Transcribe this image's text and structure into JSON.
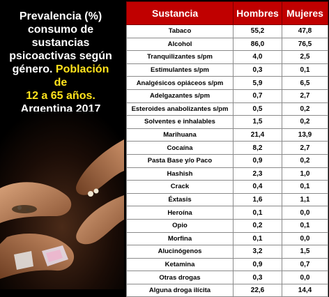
{
  "title": {
    "line1": "Prevalencia (%)",
    "line2": "consumo de",
    "line3": "sustancias",
    "line4": "psicoactivas según",
    "line5_white": "género. ",
    "line5_yellow": "Población de",
    "line6": "12 a 65 años.",
    "line7": "Argentina 2017"
  },
  "table": {
    "headers": [
      "Sustancia",
      "Hombres",
      "Mujeres"
    ],
    "rows": [
      {
        "sustancia": "Tabaco",
        "hombres": "55,2",
        "mujeres": "47,8"
      },
      {
        "sustancia": "Alcohol",
        "hombres": "86,0",
        "mujeres": "76,5"
      },
      {
        "sustancia": "Tranquilizantes s/pm",
        "hombres": "4,0",
        "mujeres": "2,5"
      },
      {
        "sustancia": "Estimulantes s/pm",
        "hombres": "0,3",
        "mujeres": "0,1"
      },
      {
        "sustancia": "Analgésicos opiáceos s/pm",
        "hombres": "5,9",
        "mujeres": "6,5"
      },
      {
        "sustancia": "Adelgazantes s/pm",
        "hombres": "0,7",
        "mujeres": "2,7"
      },
      {
        "sustancia": "Esteroides anabolizantes s/pm",
        "hombres": "0,5",
        "mujeres": "0,2"
      },
      {
        "sustancia": "Solventes e inhalables",
        "hombres": "1,5",
        "mujeres": "0,2"
      },
      {
        "sustancia": "Marihuana",
        "hombres": "21,4",
        "mujeres": "13,9"
      },
      {
        "sustancia": "Cocaína",
        "hombres": "8,2",
        "mujeres": "2,7"
      },
      {
        "sustancia": "Pasta Base y/o Paco",
        "hombres": "0,9",
        "mujeres": "0,2"
      },
      {
        "sustancia": "Hashish",
        "hombres": "2,3",
        "mujeres": "1,0"
      },
      {
        "sustancia": "Crack",
        "hombres": "0,4",
        "mujeres": "0,1"
      },
      {
        "sustancia": "Éxtasis",
        "hombres": "1,6",
        "mujeres": "1,1"
      },
      {
        "sustancia": "Heroína",
        "hombres": "0,1",
        "mujeres": "0,0"
      },
      {
        "sustancia": "Opio",
        "hombres": "0,2",
        "mujeres": "0,1"
      },
      {
        "sustancia": "Morfina",
        "hombres": "0,1",
        "mujeres": "0,0"
      },
      {
        "sustancia": "Alucinógenos",
        "hombres": "3,2",
        "mujeres": "1,5"
      },
      {
        "sustancia": "Ketamina",
        "hombres": "0,9",
        "mujeres": "0,7"
      },
      {
        "sustancia": "Otras drogas",
        "hombres": "0,3",
        "mujeres": "0,0"
      },
      {
        "sustancia": "Alguna droga ilícita",
        "hombres": "22,6",
        "mujeres": "14,4"
      }
    ]
  },
  "colors": {
    "header_bg": "#c00000",
    "title_white": "#ffffff",
    "title_yellow": "#ffe21c"
  }
}
